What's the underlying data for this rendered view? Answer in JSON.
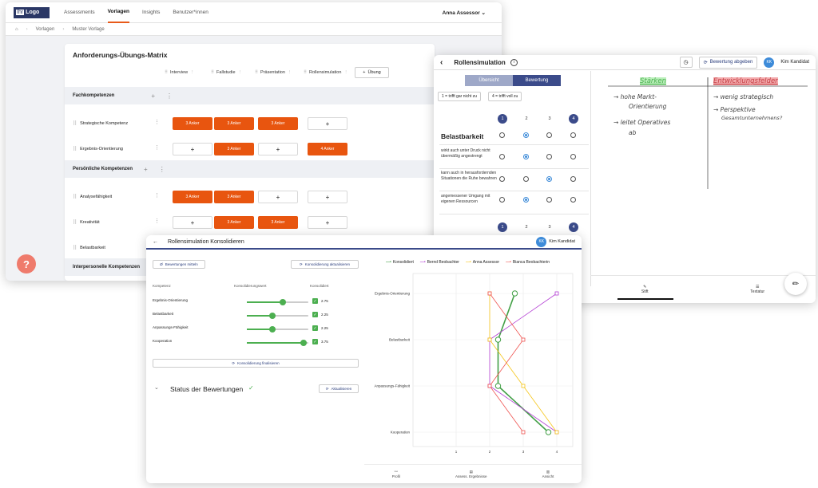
{
  "w1": {
    "logo_prefix": "Ihr",
    "logo_text": "Logo",
    "nav": [
      "Assessments",
      "Vorlagen",
      "Insights",
      "Benutzer*innen"
    ],
    "user": "Anna Assessor",
    "crumbs": [
      "Vorlagen",
      "Muster Vorlage"
    ],
    "title": "Anforderungs-Übungs-Matrix",
    "columns": [
      "Interview",
      "Fallstudie",
      "Präsentation",
      "Rollensimulation"
    ],
    "add_uebung": "Übung",
    "sections": [
      "Fachkompetenzen",
      "Persönliche Kompetenzen",
      "Interpersonelle Kompetenzen"
    ],
    "rows": [
      {
        "label": "Strategische Kompetenz",
        "cells": [
          "3 Anker",
          "3 Anker",
          "3 Anker",
          "+"
        ]
      },
      {
        "label": "Ergebnis-Orientierung",
        "cells": [
          "+",
          "3 Anker",
          "+",
          "4 Anker"
        ]
      },
      {
        "label": "Analysefähigkeit",
        "cells": [
          "3 Anker",
          "3 Anker",
          "+",
          "+"
        ]
      },
      {
        "label": "Kreativität",
        "cells": [
          "+",
          "3 Anker",
          "3 Anker",
          "+"
        ]
      },
      {
        "label": "Belastbarkeit",
        "cells": [
          "",
          "",
          "",
          ""
        ]
      }
    ],
    "help": "?"
  },
  "w2": {
    "title": "Rollensimulation",
    "abgeben": "Bewertung abgeben",
    "initials": "KK",
    "user": "Kim Kandidat",
    "tabs": [
      "Übersicht",
      "Bewertung"
    ],
    "legend": [
      "1 = trifft gar nicht zu",
      "4 = trifft voll zu"
    ],
    "scale": [
      "1",
      "2",
      "3",
      "4"
    ],
    "criterion": "Belastbarkeit",
    "statements": [
      {
        "text": "wirkt auch unter Druck nicht übermäßig angestrengt",
        "selected": 2
      },
      {
        "text": "kann auch in herausfordernden Situationen die Ruhe bewahren",
        "selected": 3
      },
      {
        "text": "angemessener Umgang mit eigenen Ressourcen",
        "selected": 2
      }
    ],
    "notes": {
      "strengths_title": "Stärken",
      "strengths": [
        "→ hohe Markt-",
        "Orientierung",
        "→ leitet Operatives",
        "ab"
      ],
      "dev_title": "Entwicklungsfelder",
      "dev": [
        "→ wenig strategisch",
        "→ Perspektive",
        "Gesamtunternehmens?"
      ]
    },
    "bottom": [
      "Stift",
      "Textatur"
    ]
  },
  "w3": {
    "title": "Rollensimulation Konsolidieren",
    "initials": "KK",
    "user": "Kim Kandidat",
    "btn_mitteln": "Bewertungen mitteln",
    "btn_aktualisieren": "Konsolidierung aktualisieren",
    "headers": [
      "Kompetenz",
      "Konsolidierungswert",
      "Konsolidiert"
    ],
    "rows": [
      {
        "label": "Ergebnis-Orientierung",
        "value": "2.75",
        "fraction": 0.58
      },
      {
        "label": "Belastbarkeit",
        "value": "2.25",
        "fraction": 0.42
      },
      {
        "label": "Anpassungs-Fähigkeit",
        "value": "2.25",
        "fraction": 0.42
      },
      {
        "label": "Kooperation",
        "value": "3.75",
        "fraction": 0.92
      }
    ],
    "btn_finalisieren": "Konsolidierung finalisieren",
    "status_title": "Status der Bewertungen",
    "btn_status_akt": "Aktualisieren",
    "bottom": [
      "Profil",
      "Assess. Ergebnisse",
      "Ansicht"
    ]
  },
  "chart_data": {
    "type": "line",
    "orientation": "vertical-profile",
    "categories": [
      "Ergebnis-Orientierung",
      "Belastbarkeit",
      "Anpassungs-Fähigkeit",
      "Kooperation"
    ],
    "xlim": [
      0,
      4
    ],
    "xticks": [
      "1",
      "2",
      "3",
      "4"
    ],
    "grid": true,
    "legend": "top",
    "series": [
      {
        "name": "Konsolidiert",
        "color": "#43a047",
        "marker": "circle",
        "values": [
          2.75,
          2.25,
          2.25,
          3.75
        ]
      },
      {
        "name": "Bernd Beobachter",
        "color": "#b43fd4",
        "marker": "square",
        "values": [
          4,
          2,
          2,
          4
        ]
      },
      {
        "name": "Anna Assessor",
        "color": "#f5c518",
        "marker": "square",
        "values": [
          2,
          2,
          3,
          4
        ]
      },
      {
        "name": "Bianca Beobachterin",
        "color": "#ef5350",
        "marker": "square",
        "values": [
          2,
          3,
          2,
          3
        ]
      }
    ]
  }
}
